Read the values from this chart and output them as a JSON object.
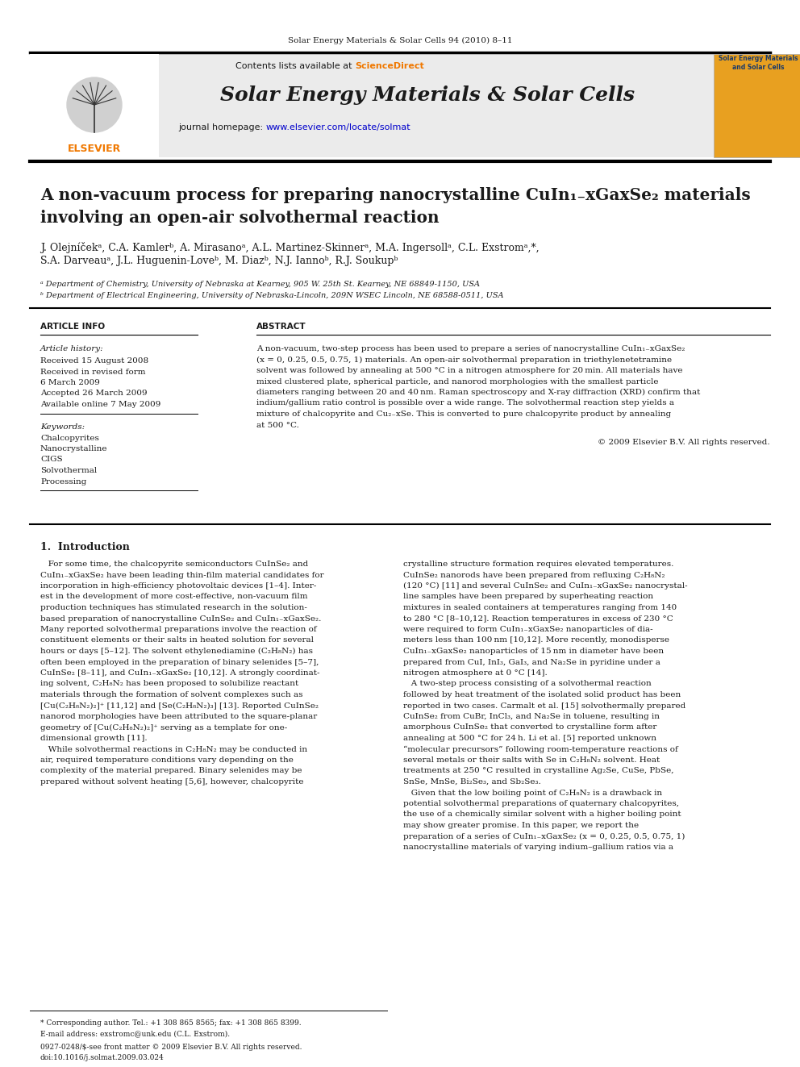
{
  "page_bg": "#ffffff",
  "header_journal": "Solar Energy Materials & Solar Cells 94 (2010) 8–11",
  "header_bg": "#ebebeb",
  "journal_title": "Solar Energy Materials & Solar Cells",
  "contents_text": "Contents lists available at ScienceDirect",
  "journal_url": "journal homepage: www.elsevier.com/locate/solmat",
  "article_title_line1": "A non-vacuum process for preparing nanocrystalline CuIn₁₋xGaxSe₂ materials",
  "article_title_line2": "involving an open-air solvothermal reaction",
  "authors_line1": "J. Olejníčekᵃ, C.A. Kamlerᵇ, A. Mirasanoᵃ, A.L. Martinez-Skinnerᵃ, M.A. Ingersollᵃ, C.L. Exstromᵃ,*,",
  "authors_line2": "S.A. Darveauᵃ, J.L. Huguenin-Loveᵇ, M. Diazᵇ, N.J. Iannoᵇ, R.J. Soukupᵇ",
  "affil_a": "ᵃ Department of Chemistry, University of Nebraska at Kearney, 905 W. 25th St. Kearney, NE 68849-1150, USA",
  "affil_b": "ᵇ Department of Electrical Engineering, University of Nebraska-Lincoln, 209N WSEC Lincoln, NE 68588-0511, USA",
  "article_info_header": "ARTICLE INFO",
  "abstract_header": "ABSTRACT",
  "article_history_label": "Article history:",
  "received1": "Received 15 August 2008",
  "received2": "Received in revised form",
  "received2b": "6 March 2009",
  "accepted": "Accepted 26 March 2009",
  "available": "Available online 7 May 2009",
  "keywords_label": "Keywords:",
  "keywords": [
    "Chalcopyrites",
    "Nanocrystalline",
    "CIGS",
    "Solvothermal",
    "Processing"
  ],
  "abstract_lines": [
    "A non-vacuum, two-step process has been used to prepare a series of nanocrystalline CuIn₁₋xGaxSe₂",
    "(x = 0, 0.25, 0.5, 0.75, 1) materials. An open-air solvothermal preparation in triethylenetetramine",
    "solvent was followed by annealing at 500 °C in a nitrogen atmosphere for 20 min. All materials have",
    "mixed clustered plate, spherical particle, and nanorod morphologies with the smallest particle",
    "diameters ranging between 20 and 40 nm. Raman spectroscopy and X-ray diffraction (XRD) confirm that",
    "indium/gallium ratio control is possible over a wide range. The solvothermal reaction step yields a",
    "mixture of chalcopyrite and Cu₂₋xSe. This is converted to pure chalcopyrite product by annealing",
    "at 500 °C."
  ],
  "copyright": "© 2009 Elsevier B.V. All rights reserved.",
  "intro_header": "1.  Introduction",
  "col1_lines": [
    "   For some time, the chalcopyrite semiconductors CuInSe₂ and",
    "CuIn₁₋xGaxSe₂ have been leading thin-film material candidates for",
    "incorporation in high-efficiency photovoltaic devices [1–4]. Inter-",
    "est in the development of more cost-effective, non-vacuum film",
    "production techniques has stimulated research in the solution-",
    "based preparation of nanocrystalline CuInSe₂ and CuIn₁₋xGaxSe₂.",
    "Many reported solvothermal preparations involve the reaction of",
    "constituent elements or their salts in heated solution for several",
    "hours or days [5–12]. The solvent ethylenediamine (C₂H₈N₂) has",
    "often been employed in the preparation of binary selenides [5–7],",
    "CuInSe₂ [8–11], and CuIn₁₋xGaxSe₂ [10,12]. A strongly coordinat-",
    "ing solvent, C₂H₈N₂ has been proposed to solubilize reactant",
    "materials through the formation of solvent complexes such as",
    "[Cu(C₂H₈N₂)₂]⁺ [11,12] and [Se(C₂H₈N₂)₃] [13]. Reported CuInSe₂",
    "nanorod morphologies have been attributed to the square-planar",
    "geometry of [Cu(C₂H₈N₂)₂]⁺ serving as a template for one-",
    "dimensional growth [11].",
    "   While solvothermal reactions in C₂H₈N₂ may be conducted in",
    "air, required temperature conditions vary depending on the",
    "complexity of the material prepared. Binary selenides may be",
    "prepared without solvent heating [5,6], however, chalcopyrite"
  ],
  "col2_lines": [
    "crystalline structure formation requires elevated temperatures.",
    "CuInSe₂ nanorods have been prepared from refluxing C₂H₈N₂",
    "(120 °C) [11] and several CuInSe₂ and CuIn₁₋xGaxSe₂ nanocrystal-",
    "line samples have been prepared by superheating reaction",
    "mixtures in sealed containers at temperatures ranging from 140",
    "to 280 °C [8–10,12]. Reaction temperatures in excess of 230 °C",
    "were required to form CuIn₁₋xGaxSe₂ nanoparticles of dia-",
    "meters less than 100 nm [10,12]. More recently, monodisperse",
    "CuIn₁₋xGaxSe₂ nanoparticles of 15 nm in diameter have been",
    "prepared from CuI, InI₃, GaI₃, and Na₂Se in pyridine under a",
    "nitrogen atmosphere at 0 °C [14].",
    "   A two-step process consisting of a solvothermal reaction",
    "followed by heat treatment of the isolated solid product has been",
    "reported in two cases. Carmalt et al. [15] solvothermally prepared",
    "CuInSe₂ from CuBr, InCl₃, and Na₂Se in toluene, resulting in",
    "amorphous CuInSe₂ that converted to crystalline form after",
    "annealing at 500 °C for 24 h. Li et al. [5] reported unknown",
    "“molecular precursors” following room-temperature reactions of",
    "several metals or their salts with Se in C₂H₈N₂ solvent. Heat",
    "treatments at 250 °C resulted in crystalline Ag₂Se, CuSe, PbSe,",
    "SnSe, MnSe, Bi₂Se₃, and Sb₂Se₃.",
    "   Given that the low boiling point of C₂H₈N₂ is a drawback in",
    "potential solvothermal preparations of quaternary chalcopyrites,",
    "the use of a chemically similar solvent with a higher boiling point",
    "may show greater promise. In this paper, we report the",
    "preparation of a series of CuIn₁₋xGaxSe₂ (x = 0, 0.25, 0.5, 0.75, 1)",
    "nanocrystalline materials of varying indium–gallium ratios via a"
  ],
  "footer_line1": "* Corresponding author. Tel.: +1 308 865 8565; fax: +1 308 865 8399.",
  "footer_line2": "E-mail address: exstromc@unk.edu (C.L. Exstrom).",
  "footer_line3": "0927-0248/$-see front matter © 2009 Elsevier B.V. All rights reserved.",
  "footer_line4": "doi:10.1016/j.solmat.2009.03.024",
  "sciencedirect_color": "#f07800",
  "link_color": "#0000cc",
  "dark_color": "#1a1a1a",
  "gray_color": "#555555",
  "light_gray": "#e0e0e0",
  "cover_title": "Solar Energy Materials\nand Solar Cells"
}
